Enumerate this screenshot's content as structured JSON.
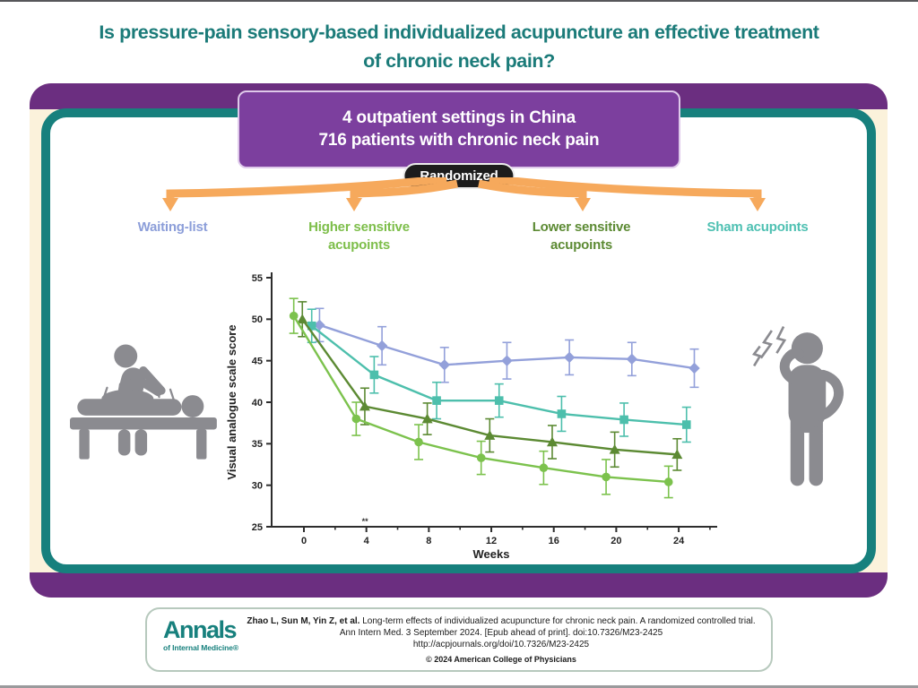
{
  "page": {
    "title_line1": "Is pressure-pain sensory-based individualized acupuncture an effective treatment",
    "title_line2": "of chronic neck pain?"
  },
  "banner": {
    "line1": "4 outpatient settings in China",
    "line2": "716 patients with chronic neck pain",
    "badge_label": "Randomized"
  },
  "groups": [
    {
      "label": "Waiting-list",
      "color": "#8C9ED9"
    },
    {
      "label": "Higher sensitive acupoints",
      "color": "#7DBE4A"
    },
    {
      "label": "Lower sensitive acupoints",
      "color": "#5C8A33"
    },
    {
      "label": "Sham acupoints",
      "color": "#4EC0B2"
    }
  ],
  "icons": {
    "left": "acupuncture-treatment-icon",
    "right": "neck-pain-person-icon",
    "color": "#8B8B90"
  },
  "colors": {
    "title_teal": "#1B7B79",
    "frame_teal": "#17807D",
    "purple_band": "#6B2E80",
    "banner_purple": "#7C3F9E",
    "badge_black": "#1C1C1C",
    "arrow_orange": "#F6A95C",
    "cream": "#FBF2DB"
  },
  "chart_data": {
    "type": "line",
    "x": [
      0,
      4,
      8,
      12,
      16,
      20,
      24
    ],
    "minor_ticks": [
      2,
      6,
      10,
      14,
      18,
      22,
      26
    ],
    "xlabel": "Weeks",
    "ylabel": "Visual analogue scale score",
    "ylim": [
      25,
      55
    ],
    "xlim": [
      -2,
      26.5
    ],
    "yticks": [
      25,
      30,
      35,
      40,
      45,
      50,
      55
    ],
    "grid": false,
    "legend_position": "colored-group-labels-above",
    "annotation": {
      "text": "**",
      "week": 4
    },
    "series": [
      {
        "name": "Waiting-list",
        "marker": "diamond",
        "color": "#93A0DA",
        "offset": 1.0,
        "values": [
          49.3,
          46.8,
          44.5,
          45.0,
          45.4,
          45.2,
          44.1
        ],
        "errors": [
          2.0,
          2.3,
          2.1,
          2.2,
          2.1,
          2.0,
          2.3
        ]
      },
      {
        "name": "Sham acupoints",
        "marker": "square",
        "color": "#4DBFAC",
        "offset": 0.5,
        "values": [
          49.2,
          43.3,
          40.2,
          40.2,
          38.6,
          37.9,
          37.3
        ],
        "errors": [
          2.0,
          2.2,
          2.2,
          2.0,
          2.1,
          2.0,
          2.1
        ]
      },
      {
        "name": "Lower sensitive acupoints",
        "marker": "triangle",
        "color": "#5C8A33",
        "offset": -0.1,
        "values": [
          50.0,
          39.5,
          38.0,
          36.0,
          35.2,
          34.3,
          33.7
        ],
        "errors": [
          2.1,
          2.2,
          1.9,
          2.0,
          2.0,
          2.1,
          1.9
        ]
      },
      {
        "name": "Higher sensitive acupoints",
        "marker": "circle",
        "color": "#7CC24D",
        "offset": -0.65,
        "values": [
          50.4,
          38.0,
          35.2,
          33.3,
          32.1,
          31.0,
          30.4
        ],
        "errors": [
          2.1,
          2.0,
          2.1,
          2.0,
          2.0,
          2.1,
          1.9
        ]
      }
    ]
  },
  "footer": {
    "logo_line1": "Annals",
    "logo_line2": "of Internal Medicine®",
    "citation_bold": "Zhao L, Sun M, Yin Z, et al.",
    "citation_text": " Long-term effects of individualized acupuncture for chronic neck pain. A randomized controlled trial. Ann Intern Med. 3 September 2024. [Epub ahead of print]. doi:10.7326/M23-2425",
    "citation_url": "http://acpjournals.org/doi/10.7326/M23-2425",
    "copyright": "© 2024 American College of Physicians"
  }
}
